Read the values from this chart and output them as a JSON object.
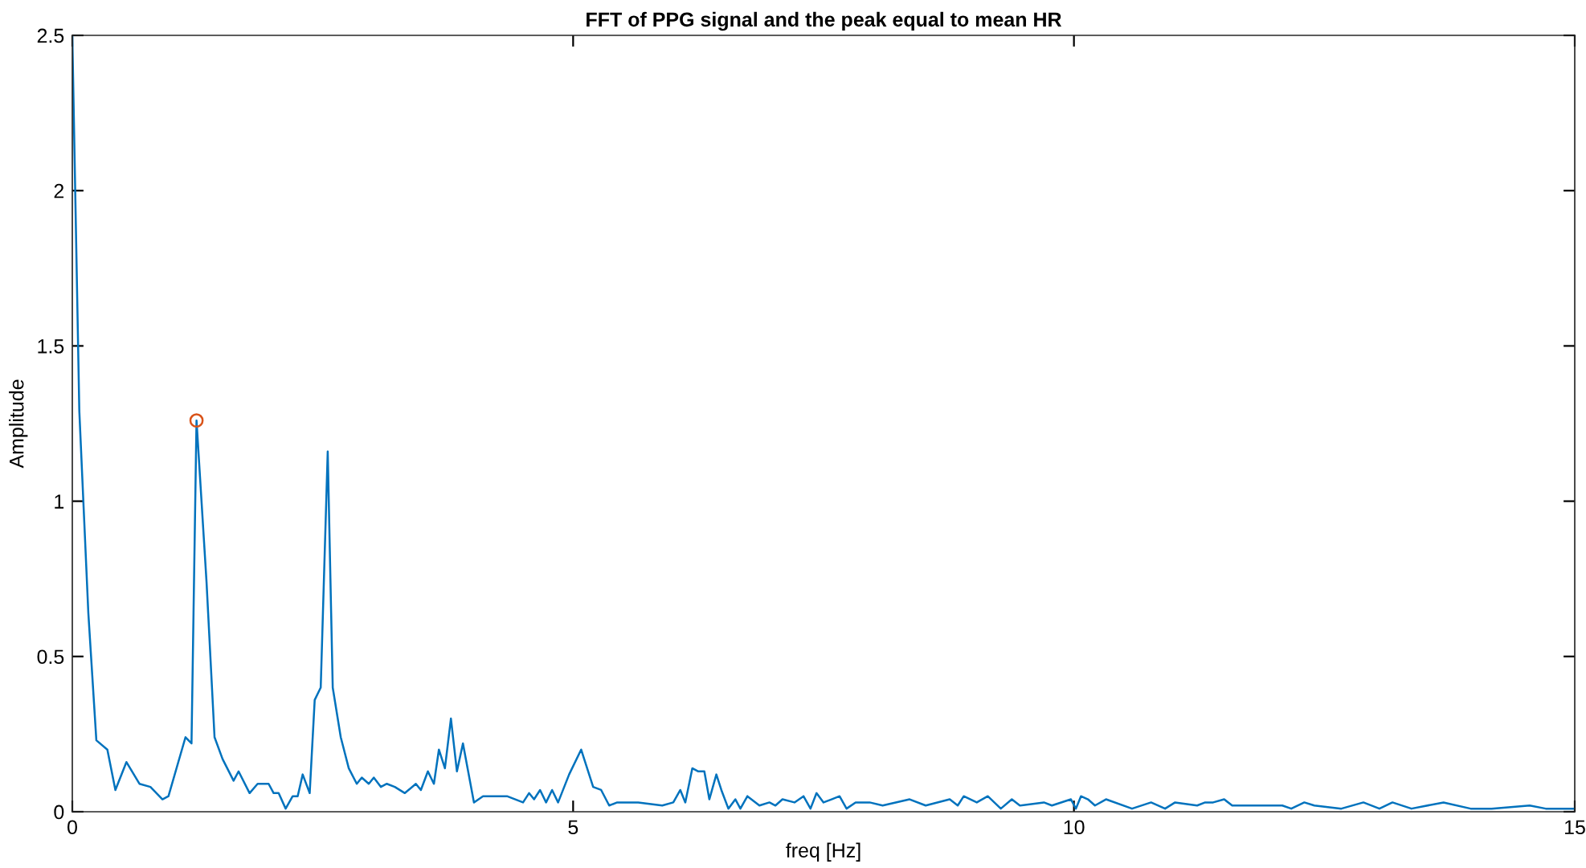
{
  "chart_data": {
    "type": "line",
    "title": "FFT of PPG signal and the peak equal to mean HR",
    "xlabel": "freq [Hz]",
    "ylabel": "Amplitude",
    "xlim": [
      0,
      15
    ],
    "xticks": [
      0,
      5,
      10,
      15
    ],
    "ylim": [
      0,
      2.5
    ],
    "yticks": [
      0,
      0.5,
      1,
      1.5,
      2,
      2.5
    ],
    "grid": false,
    "series": [
      {
        "color": "#0072bd",
        "marker": "none",
        "x": [
          0.0,
          0.07,
          0.16,
          0.24,
          0.35,
          0.43,
          0.54,
          0.67,
          0.78,
          0.9,
          0.96,
          1.13,
          1.19,
          1.24,
          1.34,
          1.42,
          1.5,
          1.61,
          1.66,
          1.77,
          1.85,
          1.96,
          2.01,
          2.06,
          2.13,
          2.2,
          2.25,
          2.3,
          2.37,
          2.42,
          2.48,
          2.55,
          2.6,
          2.68,
          2.76,
          2.84,
          2.89,
          2.96,
          3.01,
          3.08,
          3.14,
          3.22,
          3.32,
          3.43,
          3.48,
          3.55,
          3.61,
          3.66,
          3.72,
          3.78,
          3.84,
          3.9,
          4.01,
          4.1,
          4.34,
          4.5,
          4.56,
          4.61,
          4.67,
          4.73,
          4.79,
          4.85,
          4.96,
          5.08,
          5.2,
          5.28,
          5.36,
          5.44,
          5.65,
          5.89,
          6.0,
          6.07,
          6.12,
          6.19,
          6.25,
          6.31,
          6.36,
          6.43,
          6.48,
          6.55,
          6.62,
          6.67,
          6.74,
          6.86,
          6.96,
          7.02,
          7.09,
          7.21,
          7.3,
          7.37,
          7.43,
          7.5,
          7.58,
          7.66,
          7.73,
          7.82,
          7.96,
          8.09,
          8.36,
          8.52,
          8.76,
          8.84,
          8.9,
          9.03,
          9.14,
          9.27,
          9.38,
          9.46,
          9.7,
          9.78,
          9.97,
          10.02,
          10.07,
          10.14,
          10.21,
          10.32,
          10.58,
          10.77,
          10.91,
          11.01,
          11.23,
          11.31,
          11.39,
          11.5,
          11.58,
          12.08,
          12.17,
          12.3,
          12.4,
          12.67,
          12.89,
          13.05,
          13.18,
          13.37,
          13.69,
          13.96,
          14.17,
          14.55,
          14.71,
          15.0
        ],
        "values": [
          2.5,
          1.29,
          0.64,
          0.23,
          0.2,
          0.07,
          0.16,
          0.09,
          0.08,
          0.04,
          0.05,
          0.24,
          0.22,
          1.26,
          0.74,
          0.24,
          0.17,
          0.1,
          0.13,
          0.06,
          0.09,
          0.09,
          0.06,
          0.06,
          0.01,
          0.05,
          0.05,
          0.12,
          0.06,
          0.36,
          0.4,
          1.16,
          0.4,
          0.24,
          0.14,
          0.09,
          0.11,
          0.09,
          0.11,
          0.08,
          0.09,
          0.08,
          0.06,
          0.09,
          0.07,
          0.13,
          0.09,
          0.2,
          0.14,
          0.3,
          0.13,
          0.22,
          0.03,
          0.05,
          0.05,
          0.03,
          0.06,
          0.04,
          0.07,
          0.03,
          0.07,
          0.03,
          0.12,
          0.2,
          0.08,
          0.07,
          0.02,
          0.03,
          0.03,
          0.02,
          0.03,
          0.07,
          0.03,
          0.14,
          0.13,
          0.13,
          0.04,
          0.12,
          0.07,
          0.01,
          0.04,
          0.01,
          0.05,
          0.02,
          0.03,
          0.02,
          0.04,
          0.03,
          0.05,
          0.01,
          0.06,
          0.03,
          0.04,
          0.05,
          0.01,
          0.03,
          0.03,
          0.02,
          0.04,
          0.02,
          0.04,
          0.02,
          0.05,
          0.03,
          0.05,
          0.01,
          0.04,
          0.02,
          0.03,
          0.02,
          0.04,
          0.01,
          0.05,
          0.04,
          0.02,
          0.04,
          0.01,
          0.03,
          0.01,
          0.03,
          0.02,
          0.03,
          0.03,
          0.04,
          0.02,
          0.02,
          0.01,
          0.03,
          0.02,
          0.01,
          0.03,
          0.01,
          0.03,
          0.01,
          0.03,
          0.01,
          0.01,
          0.02,
          0.01,
          0.01
        ]
      },
      {
        "type": "scatter",
        "color": "#d95319",
        "marker": "circle",
        "x": [
          1.24
        ],
        "values": [
          1.26
        ]
      }
    ]
  }
}
